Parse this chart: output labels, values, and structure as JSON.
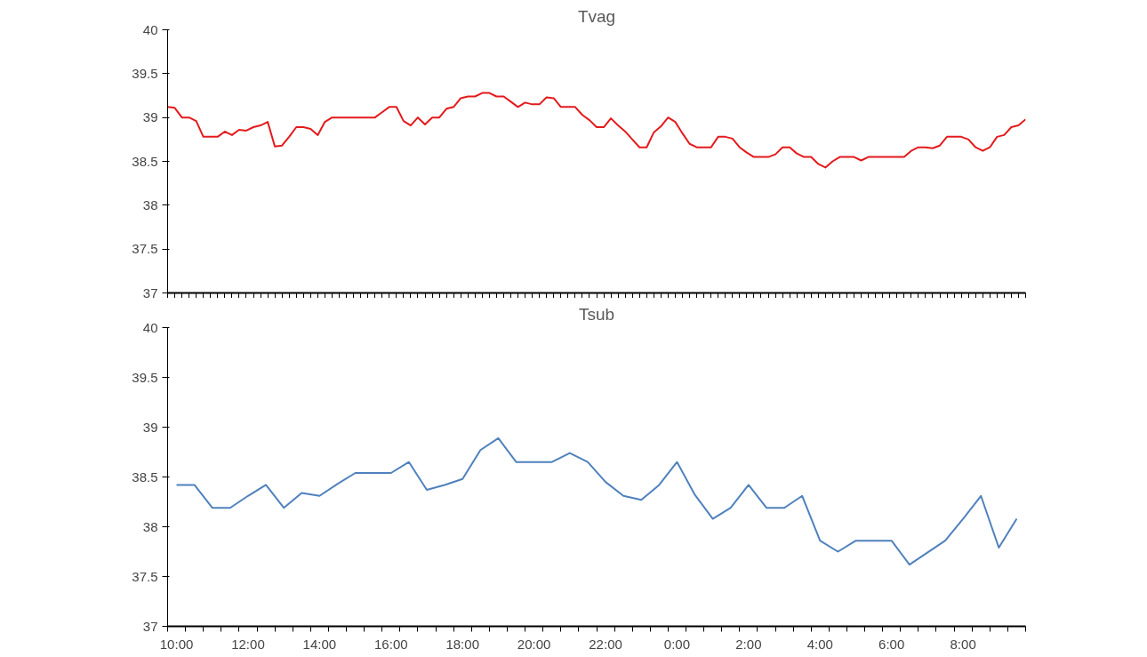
{
  "chart_data": [
    {
      "type": "line",
      "title": "Tvag",
      "ylim": [
        37,
        40
      ],
      "yticks": [
        37,
        37.5,
        38,
        38.5,
        39,
        39.5,
        40
      ],
      "tick_labels": "y",
      "grid": false,
      "marker": "none",
      "line_style": "solid",
      "categories": [
        null,
        null,
        null,
        null,
        null,
        null,
        null,
        null,
        null,
        null,
        null,
        null,
        null,
        null,
        null,
        null,
        null,
        null,
        null,
        null,
        null,
        null,
        null,
        null,
        null,
        null,
        null,
        null,
        null,
        null,
        null,
        null,
        null,
        null,
        null,
        null,
        null,
        null,
        null,
        null,
        null,
        null,
        null,
        null,
        null,
        null,
        null,
        null,
        null,
        null,
        null,
        null,
        null,
        null,
        null,
        null,
        null,
        null,
        null,
        null,
        null,
        null,
        null,
        null,
        null,
        null,
        null,
        null,
        null,
        null,
        null,
        null,
        null,
        null,
        null,
        null,
        null,
        null,
        null,
        null,
        null,
        null,
        null,
        null,
        null,
        null,
        null,
        null,
        null,
        null,
        null,
        null,
        null,
        null,
        null,
        null,
        null,
        null,
        null,
        null,
        null,
        null,
        null,
        null,
        null,
        null,
        null,
        null,
        null,
        null,
        null,
        null,
        null,
        null,
        null,
        null,
        null,
        null,
        null,
        null,
        null
      ],
      "series": [
        {
          "color": "#e41a1c",
          "values": [
            39.12,
            39.11,
            39.0,
            39.0,
            38.96,
            38.78,
            38.78,
            38.78,
            38.84,
            38.8,
            38.86,
            38.85,
            38.89,
            38.91,
            38.95,
            38.67,
            38.68,
            38.78,
            38.89,
            38.89,
            38.87,
            38.8,
            38.95,
            39.0,
            39.0,
            39.0,
            39.0,
            39.0,
            39.0,
            39.0,
            39.06,
            39.12,
            39.12,
            38.96,
            38.91,
            39.0,
            38.92,
            39.0,
            39.0,
            39.1,
            39.12,
            39.22,
            39.24,
            39.24,
            39.28,
            39.28,
            39.24,
            39.24,
            39.18,
            39.12,
            39.17,
            39.15,
            39.15,
            39.23,
            39.22,
            39.12,
            39.12,
            39.12,
            39.03,
            38.97,
            38.89,
            38.89,
            38.99,
            38.91,
            38.84,
            38.75,
            38.66,
            38.66,
            38.83,
            38.9,
            39.0,
            38.95,
            38.82,
            38.7,
            38.66,
            38.66,
            38.66,
            38.78,
            38.78,
            38.76,
            38.66,
            38.6,
            38.55,
            38.55,
            38.55,
            38.58,
            38.66,
            38.66,
            38.59,
            38.55,
            38.55,
            38.47,
            38.43,
            38.5,
            38.55,
            38.55,
            38.55,
            38.51,
            38.55,
            38.55,
            38.55,
            38.55,
            38.55,
            38.55,
            38.62,
            38.66,
            38.66,
            38.65,
            38.68,
            38.78,
            38.78,
            38.78,
            38.75,
            38.66,
            38.62,
            38.66,
            38.78,
            38.8,
            38.89,
            38.91,
            38.98
          ]
        }
      ]
    },
    {
      "type": "line",
      "title": "Tsub",
      "ylim": [
        37,
        40
      ],
      "yticks": [
        37,
        37.5,
        38,
        38.5,
        39,
        39.5,
        40
      ],
      "grid": false,
      "marker": "none",
      "line_style": "solid",
      "categories": [
        "10:00",
        null,
        null,
        null,
        "12:00",
        null,
        null,
        null,
        "14:00",
        null,
        null,
        null,
        "16:00",
        null,
        null,
        null,
        "18:00",
        null,
        null,
        null,
        "20:00",
        null,
        null,
        null,
        "22:00",
        null,
        null,
        null,
        "0:00",
        null,
        null,
        null,
        "2:00",
        null,
        null,
        null,
        "4:00",
        null,
        null,
        null,
        "6:00",
        null,
        null,
        null,
        "8:00",
        null,
        null,
        null
      ],
      "series": [
        {
          "color": "#4f81bd",
          "values": [
            38.42,
            38.42,
            38.19,
            38.19,
            38.31,
            38.42,
            38.19,
            38.34,
            38.31,
            38.43,
            38.54,
            38.54,
            38.54,
            38.65,
            38.37,
            38.42,
            38.48,
            38.77,
            38.89,
            38.65,
            38.65,
            38.65,
            38.74,
            38.65,
            38.45,
            38.31,
            38.27,
            38.42,
            38.65,
            38.32,
            38.08,
            38.19,
            38.42,
            38.19,
            38.19,
            38.31,
            37.86,
            37.75,
            37.86,
            37.86,
            37.86,
            37.62,
            37.74,
            37.86,
            38.08,
            38.31,
            37.79,
            38.08
          ]
        }
      ]
    }
  ]
}
